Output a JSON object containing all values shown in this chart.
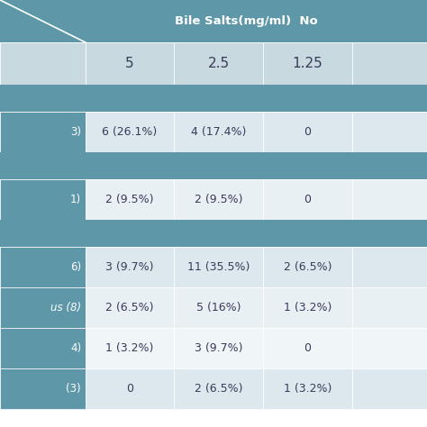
{
  "header_bg": "#5e97a7",
  "subheader_bg": "#c8d9e0",
  "row_label_bg": "#5e97a7",
  "cell_bg_1": "#dce8ed",
  "cell_bg_2": "#e8f0f4",
  "cell_bg_3": "#f0f5f8",
  "white_text": "#ffffff",
  "dark_text": "#3a3a5a",
  "col_header": "Bile Salts(mg/ml)  No",
  "col_subheaders": [
    "5",
    "2.5",
    "1.25"
  ],
  "row_labels": [
    "3)",
    "1)",
    "6)",
    "us (8)",
    "4)",
    "(3)"
  ],
  "row_italic": [
    false,
    false,
    false,
    true,
    false,
    false
  ],
  "data": [
    [
      "6 (26.1%)",
      "4 (17.4%)",
      "0"
    ],
    [
      "2 (9.5%)",
      "2 (9.5%)",
      "0"
    ],
    [
      "3 (9.7%)",
      "11 (35.5%)",
      "2 (6.5%)"
    ],
    [
      "2 (6.5%)",
      "5 (16%)",
      "1 (3.2%)"
    ],
    [
      "1 (3.2%)",
      "3 (9.7%)",
      "0"
    ],
    [
      "0",
      "2 (6.5%)",
      "1 (3.2%)"
    ]
  ],
  "figsize": [
    4.74,
    4.74
  ],
  "dpi": 100
}
